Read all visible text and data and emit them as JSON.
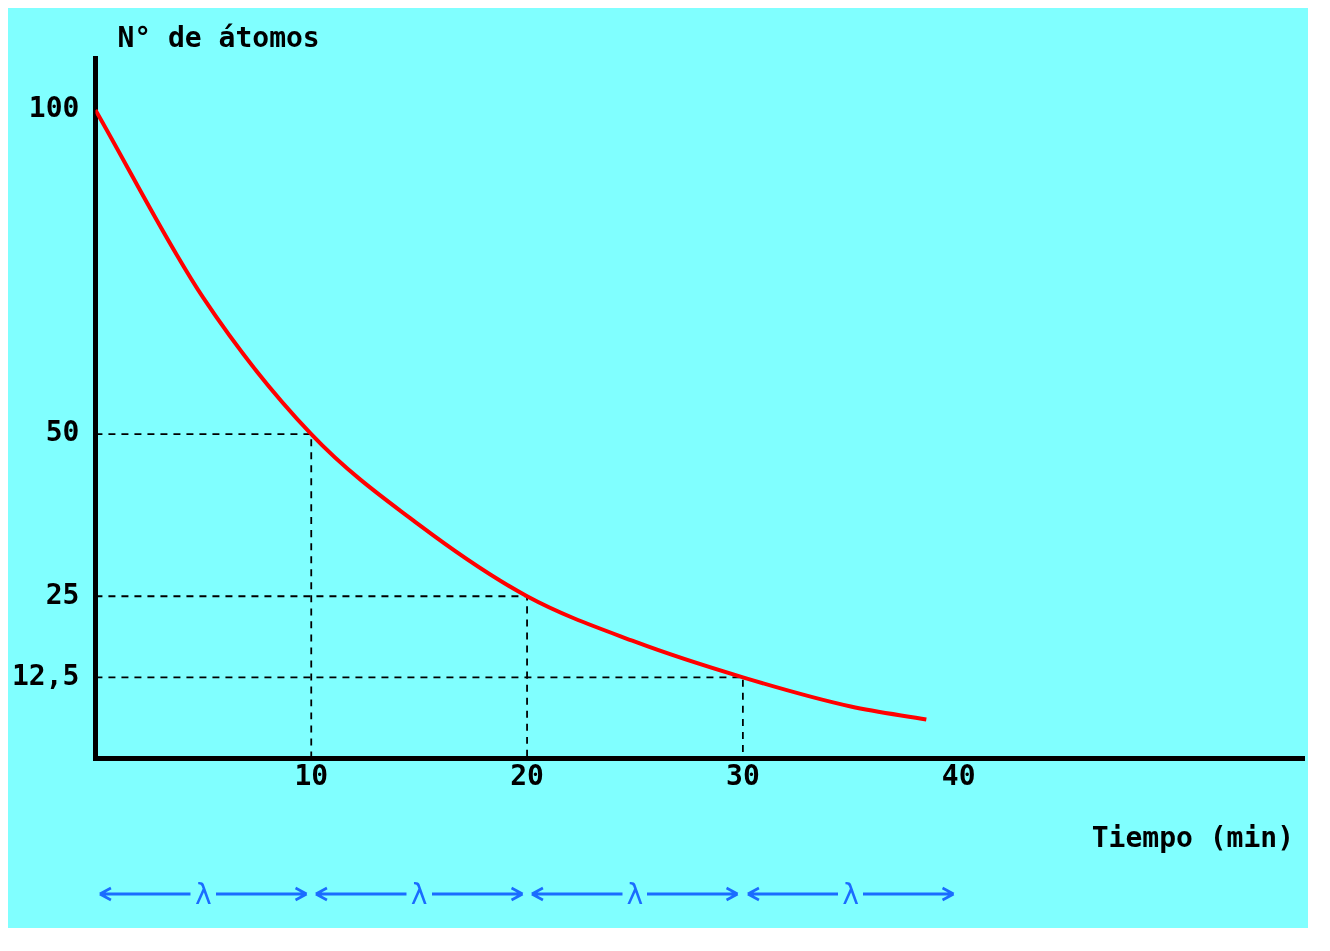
{
  "chart_data": {
    "type": "line",
    "xlabel": "Tiempo (min)",
    "ylabel": "N° de átomos",
    "xlim": [
      0,
      56
    ],
    "ylim": [
      0,
      108
    ],
    "xticks": [
      10,
      20,
      30,
      40
    ],
    "yticks": [
      {
        "value": 12.5,
        "label": "12,5"
      },
      25,
      50,
      100
    ],
    "series": [
      {
        "color": "#ff0000",
        "x": [
          0,
          5,
          10,
          15,
          20,
          25,
          30,
          35,
          38.5
        ],
        "values": [
          100,
          71,
          50,
          36,
          25,
          18,
          12.5,
          8,
          6
        ],
        "line_style": "solid"
      },
      {
        "color": "#000000",
        "x": [
          0,
          10,
          10
        ],
        "values": [
          50,
          50,
          0
        ],
        "line_style": "dashed"
      },
      {
        "color": "#000000",
        "x": [
          0,
          20,
          20
        ],
        "values": [
          25,
          25,
          0
        ],
        "line_style": "dashed"
      },
      {
        "color": "#000000",
        "x": [
          0,
          30,
          30
        ],
        "values": [
          12.5,
          12.5,
          0
        ],
        "line_style": "dashed"
      }
    ],
    "annotations": [
      "λ",
      "λ",
      "λ",
      "λ"
    ],
    "grid": false,
    "legend": false,
    "marker": "none"
  }
}
